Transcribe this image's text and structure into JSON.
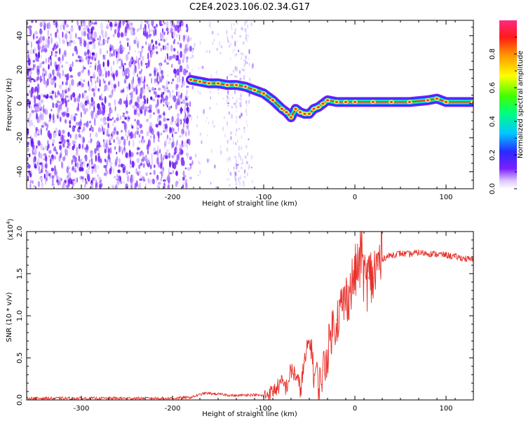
{
  "title": "C2E4.2023.106.02.34.G17",
  "chart_data": [
    {
      "type": "heatmap",
      "xlabel": "Height of straight line (km)",
      "ylabel": "Frequency (Hz)",
      "xlim": [
        -360,
        130
      ],
      "ylim": [
        -50,
        49
      ],
      "xticks": [
        -300,
        -200,
        -100,
        0,
        100
      ],
      "yticks": [
        -40,
        -20,
        0,
        20,
        40
      ],
      "colorbar": {
        "label": "Normalized spectral amplitude",
        "range": [
          0.0,
          1.0
        ],
        "ticks": [
          0.0,
          0.2,
          0.4,
          0.6,
          0.8
        ]
      },
      "noise_region_x": [
        -360,
        -180
      ],
      "sparse_noise_x": [
        -180,
        -110
      ],
      "signal_trace": {
        "x": [
          -180,
          -170,
          -160,
          -150,
          -140,
          -130,
          -120,
          -110,
          -100,
          -90,
          -80,
          -75,
          -70,
          -65,
          -60,
          -55,
          -50,
          -45,
          -40,
          -35,
          -30,
          -20,
          -10,
          0,
          20,
          40,
          60,
          80,
          90,
          100,
          130
        ],
        "y": [
          14,
          13,
          12,
          12,
          11,
          11,
          10,
          8,
          6,
          2,
          -3,
          -5,
          -8,
          -3,
          -5,
          -6,
          -6,
          -3,
          -2,
          0,
          2,
          1,
          1,
          1,
          1,
          1,
          1,
          2,
          3,
          1,
          1
        ]
      }
    },
    {
      "type": "line",
      "xlabel": "Height of straight line (km)",
      "ylabel": "SNR (10 * v/v)",
      "y_multiplier": "(x10^4)",
      "xlim": [
        -360,
        130
      ],
      "ylim": [
        0.0,
        2.0
      ],
      "xticks": [
        -300,
        -200,
        -100,
        0,
        100
      ],
      "yticks": [
        0.0,
        0.5,
        1.0,
        1.5,
        2.0
      ],
      "ytick_labels": [
        "0.0",
        "0.5",
        "1.0",
        "1.5",
        "2.0"
      ],
      "color": "#e8302a",
      "series": [
        {
          "x": [
            -360,
            -300,
            -250,
            -200,
            -180,
            -165,
            -150,
            -130,
            -120,
            -110,
            -100,
            -90,
            -80,
            -75,
            -70,
            -65,
            -60,
            -55,
            -50,
            -47,
            -45,
            -42,
            -40,
            -35,
            -30,
            -25,
            -20,
            -15,
            -10,
            -5,
            0,
            5,
            8,
            10,
            15,
            20,
            25,
            30,
            40,
            50,
            60,
            70,
            80,
            90,
            100,
            110,
            120,
            130
          ],
          "y": [
            0.02,
            0.02,
            0.02,
            0.02,
            0.03,
            0.08,
            0.07,
            0.05,
            0.06,
            0.06,
            0.05,
            0.1,
            0.2,
            0.15,
            0.35,
            0.3,
            0.12,
            0.45,
            0.7,
            0.6,
            0.25,
            0.4,
            0.12,
            0.35,
            0.55,
            0.85,
            0.95,
            1.1,
            1.2,
            1.3,
            1.5,
            1.6,
            1.85,
            1.4,
            1.45,
            1.45,
            1.6,
            1.68,
            1.72,
            1.74,
            1.73,
            1.75,
            1.74,
            1.73,
            1.72,
            1.7,
            1.68,
            1.66
          ]
        }
      ]
    }
  ]
}
